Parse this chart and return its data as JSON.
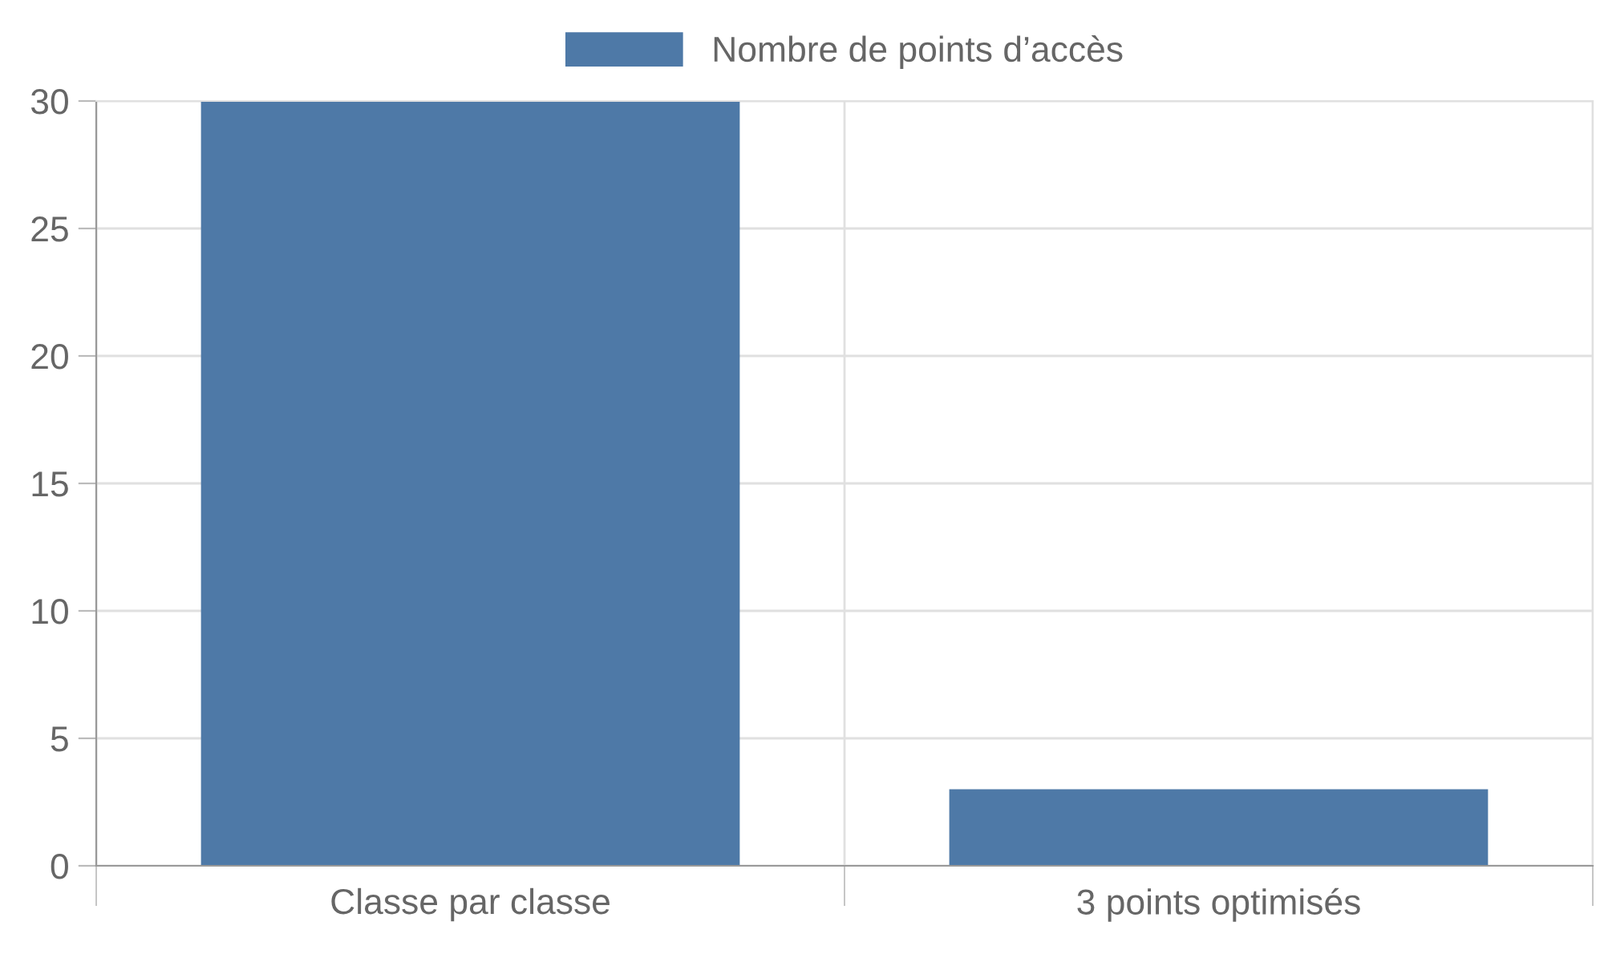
{
  "chart_data": {
    "type": "bar",
    "categories": [
      "Classe par classe",
      "3 points optimisés"
    ],
    "series": [
      {
        "name": "Nombre de points d’accès",
        "color": "#4e79a7",
        "values": [
          30,
          3
        ]
      }
    ],
    "ylim": [
      0,
      30
    ],
    "yticks": [
      0,
      5,
      10,
      15,
      20,
      25,
      30
    ],
    "grid": true,
    "legend": "top"
  }
}
